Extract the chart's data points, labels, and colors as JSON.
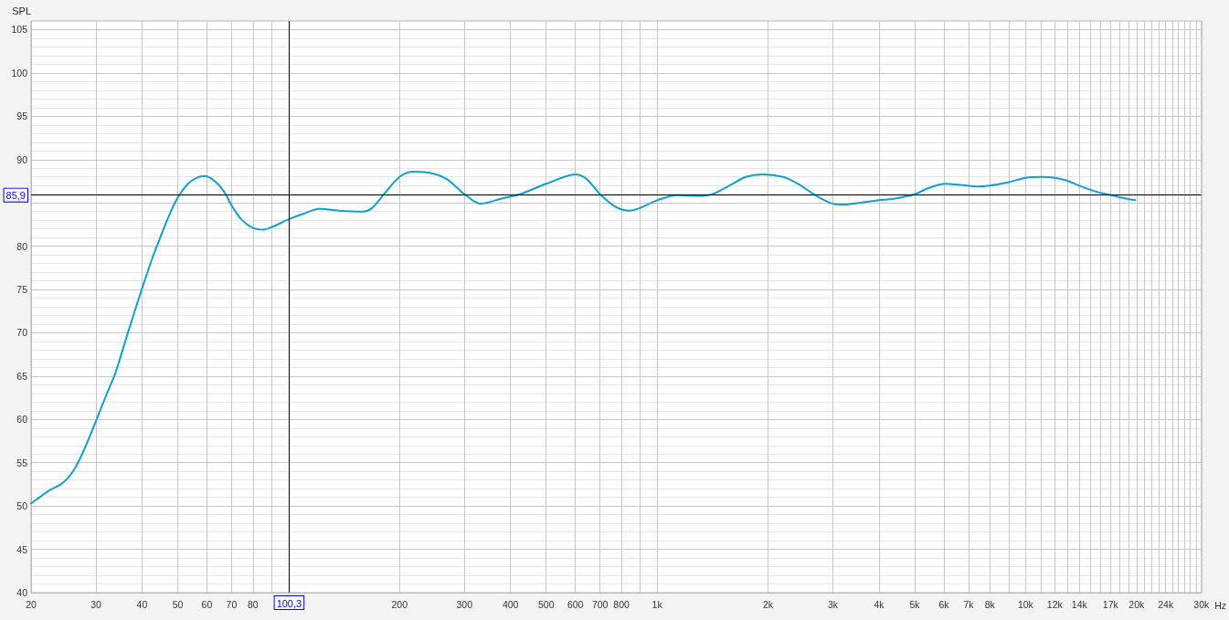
{
  "chart_data": {
    "type": "line",
    "ylabel": "SPL",
    "xlabel": "Hz",
    "log": "x",
    "grid": true,
    "marker": "none",
    "color": "#129fcb",
    "xlim": [
      20,
      30000
    ],
    "ylim": [
      40,
      106
    ],
    "xticks": [
      20,
      30,
      40,
      50,
      60,
      70,
      80,
      {
        "value": 90,
        "label": null
      },
      {
        "value": 100,
        "label": null
      },
      200,
      300,
      400,
      500,
      600,
      700,
      800,
      {
        "value": 900,
        "label": null
      },
      {
        "value": 1000,
        "label": "1k"
      },
      {
        "value": 2000,
        "label": "2k"
      },
      {
        "value": 3000,
        "label": "3k"
      },
      {
        "value": 4000,
        "label": "4k"
      },
      {
        "value": 5000,
        "label": "5k"
      },
      {
        "value": 6000,
        "label": "6k"
      },
      {
        "value": 7000,
        "label": "7k"
      },
      {
        "value": 8000,
        "label": "8k"
      },
      {
        "value": 9000,
        "label": null
      },
      {
        "value": 10000,
        "label": "10k"
      },
      {
        "value": 11000,
        "label": null
      },
      {
        "value": 12000,
        "label": "12k"
      },
      {
        "value": 13000,
        "label": null
      },
      {
        "value": 14000,
        "label": "14k"
      },
      {
        "value": 15000,
        "label": null
      },
      {
        "value": 16000,
        "label": null
      },
      {
        "value": 17000,
        "label": "17k"
      },
      {
        "value": 18000,
        "label": null
      },
      {
        "value": 19000,
        "label": null
      },
      {
        "value": 20000,
        "label": "20k"
      },
      {
        "value": 21000,
        "label": null
      },
      {
        "value": 22000,
        "label": null
      },
      {
        "value": 23000,
        "label": null
      },
      {
        "value": 24000,
        "label": "24k"
      },
      {
        "value": 25000,
        "label": null
      },
      {
        "value": 26000,
        "label": null
      },
      {
        "value": 27000,
        "label": null
      },
      {
        "value": 28000,
        "label": null
      },
      {
        "value": 29000,
        "label": null
      },
      {
        "value": 30000,
        "label": "30k"
      }
    ],
    "yticks": [
      40,
      45,
      50,
      55,
      60,
      65,
      70,
      75,
      80,
      {
        "value": 85,
        "label": null
      },
      90,
      95,
      100,
      105
    ],
    "x": [
      20,
      21.1,
      22.4,
      24.1,
      25.5,
      26.5,
      28,
      30,
      32,
      33.9,
      36.5,
      40,
      42.9,
      44.1,
      47.1,
      50,
      53.3,
      56.4,
      59.2,
      63.1,
      66.8,
      70.7,
      74.8,
      80,
      85.4,
      90,
      100,
      109,
      121,
      136.8,
      159,
      168.3,
      181.4,
      200,
      219,
      245.5,
      269.7,
      300,
      331.7,
      378.6,
      424,
      500,
      600,
      642,
      700,
      775,
      843.6,
      1000,
      1131,
      1286,
      1411,
      1586,
      1740,
      1932,
      2197,
      2412,
      2709,
      3000,
      3226,
      3666,
      4000,
      4417,
      5000,
      5446,
      6046,
      6561,
      7371,
      8000,
      9000,
      10000,
      11080,
      12020,
      12890,
      14150,
      15530,
      17040,
      18710,
      19830
    ],
    "values": [
      50.3,
      51.0,
      51.8,
      52.5,
      53.5,
      54.6,
      56.7,
      59.8,
      62.8,
      65.4,
      69.8,
      75.1,
      78.9,
      80.2,
      83.3,
      85.6,
      87.2,
      87.9,
      88.1,
      87.5,
      86.3,
      84.4,
      83.0,
      82.1,
      81.9,
      82.2,
      83.1,
      83.7,
      84.3,
      84.1,
      84.0,
      84.4,
      86.0,
      88.0,
      88.6,
      88.4,
      87.7,
      86.0,
      84.9,
      85.5,
      86.0,
      87.2,
      88.3,
      87.8,
      86.0,
      84.5,
      84.1,
      85.3,
      85.9,
      85.8,
      86.0,
      87.1,
      88.0,
      88.3,
      88.0,
      87.2,
      85.8,
      84.9,
      84.8,
      85.1,
      85.3,
      85.5,
      86.0,
      86.7,
      87.2,
      87.1,
      86.9,
      87.0,
      87.4,
      87.9,
      88.0,
      87.9,
      87.6,
      86.9,
      86.3,
      85.9,
      85.5,
      85.3
    ],
    "ref_lines": [
      {
        "axis": "y",
        "value": 85.9,
        "label": "85,9",
        "color": "#000000"
      },
      {
        "axis": "x",
        "value": 100.3,
        "label": "100,3",
        "color": "#000000"
      }
    ]
  }
}
